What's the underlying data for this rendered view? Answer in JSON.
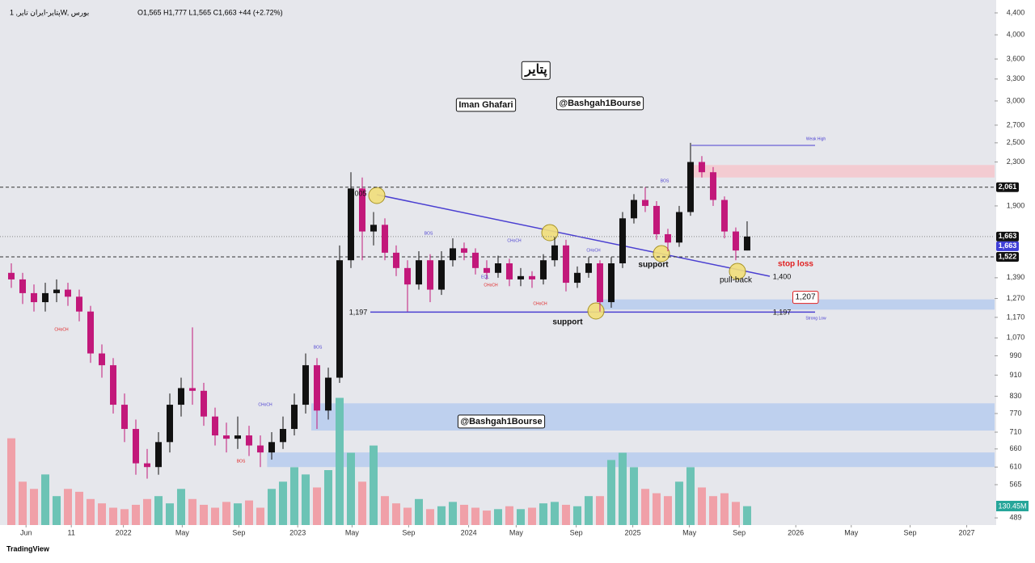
{
  "header": {
    "symbol": "پتایر-ایران تایر, 1W, بورس",
    "ohlc": "O1,565  H1,777  L1,565  C1,663  +44 (+2.72%)"
  },
  "footer": "TradingView",
  "chart_data": {
    "type": "candlestick",
    "log_scale": true,
    "up_color": "#111111",
    "down_color": "#c2187a",
    "x": [
      0,
      1,
      2,
      3,
      4,
      5,
      6,
      7,
      8,
      9,
      10,
      11,
      12,
      13,
      14,
      15,
      16,
      17,
      18,
      19,
      20,
      21,
      22,
      23,
      24,
      25,
      26,
      27,
      28,
      29,
      30,
      31,
      32,
      33,
      34,
      35,
      36,
      37,
      38,
      39,
      40,
      41,
      42,
      43,
      44,
      45,
      46,
      47,
      48,
      49,
      50,
      51,
      52,
      53,
      54,
      55,
      56,
      57,
      58,
      59,
      60,
      61,
      62,
      63,
      64,
      65
    ],
    "open": [
      1420,
      1380,
      1300,
      1250,
      1300,
      1320,
      1280,
      1200,
      1000,
      950,
      800,
      720,
      620,
      610,
      680,
      800,
      860,
      850,
      760,
      700,
      690,
      700,
      670,
      650,
      680,
      720,
      800,
      950,
      780,
      900,
      1500,
      2050,
      1700,
      1750,
      1550,
      1450,
      1350,
      1500,
      1320,
      1500,
      1580,
      1550,
      1450,
      1420,
      1480,
      1380,
      1400,
      1380,
      1500,
      1600,
      1360,
      1420,
      1480,
      1250,
      1480,
      1800,
      1950,
      1900,
      1680,
      1620,
      1850,
      2300,
      2200,
      1950,
      1700,
      1565
    ],
    "high": [
      1480,
      1420,
      1350,
      1360,
      1380,
      1360,
      1320,
      1230,
      1040,
      980,
      840,
      750,
      660,
      710,
      840,
      900,
      1120,
      880,
      790,
      740,
      760,
      730,
      700,
      710,
      760,
      840,
      1000,
      980,
      940,
      1600,
      2200,
      2150,
      1850,
      1800,
      1600,
      1500,
      1560,
      1540,
      1560,
      1650,
      1620,
      1580,
      1500,
      1530,
      1510,
      1450,
      1430,
      1540,
      1660,
      1640,
      1460,
      1520,
      1500,
      1520,
      1850,
      2000,
      2060,
      1940,
      1720,
      1900,
      2500,
      2360,
      2250,
      1980,
      1730,
      1777
    ],
    "low": [
      1330,
      1240,
      1200,
      1200,
      1250,
      1230,
      1150,
      960,
      900,
      770,
      680,
      590,
      580,
      590,
      650,
      760,
      800,
      730,
      670,
      650,
      660,
      640,
      610,
      630,
      660,
      700,
      770,
      720,
      750,
      880,
      1450,
      1500,
      1600,
      1500,
      1400,
      1200,
      1320,
      1250,
      1290,
      1460,
      1500,
      1410,
      1380,
      1390,
      1340,
      1340,
      1330,
      1350,
      1460,
      1310,
      1330,
      1390,
      1200,
      1220,
      1450,
      1760,
      1850,
      1640,
      1560,
      1590,
      1820,
      2150,
      1900,
      1650,
      1500,
      1565
    ],
    "close": [
      1380,
      1300,
      1250,
      1300,
      1320,
      1280,
      1200,
      1000,
      950,
      800,
      720,
      620,
      610,
      680,
      800,
      860,
      850,
      760,
      700,
      690,
      700,
      670,
      650,
      680,
      720,
      800,
      950,
      780,
      900,
      1500,
      2050,
      1700,
      1750,
      1550,
      1450,
      1350,
      1500,
      1320,
      1500,
      1580,
      1550,
      1450,
      1420,
      1480,
      1380,
      1400,
      1380,
      1500,
      1600,
      1360,
      1420,
      1480,
      1250,
      1480,
      1800,
      1950,
      1900,
      1680,
      1620,
      1850,
      2300,
      2200,
      1950,
      1700,
      1565,
      1663
    ],
    "volume": {
      "values": [
        600,
        300,
        250,
        350,
        200,
        250,
        230,
        180,
        150,
        120,
        110,
        140,
        180,
        200,
        150,
        250,
        180,
        140,
        120,
        160,
        150,
        170,
        120,
        250,
        300,
        400,
        350,
        260,
        380,
        880,
        500,
        300,
        550,
        200,
        150,
        120,
        180,
        110,
        130,
        160,
        140,
        120,
        100,
        110,
        130,
        110,
        120,
        150,
        160,
        140,
        130,
        200,
        200,
        450,
        500,
        400,
        250,
        220,
        200,
        300,
        400,
        260,
        200,
        220,
        160,
        130.45
      ],
      "ylim": [
        0,
        950
      ],
      "last_label": "130.45M",
      "up_color": "#6cc3b5",
      "down_color": "#f0a0a8"
    },
    "xlim": [
      -1,
      86.86
    ],
    "xticks": [
      {
        "value": 1.3,
        "label": "Jun"
      },
      {
        "value": 5.3,
        "label": "11"
      },
      {
        "value": 9.9,
        "label": "2022"
      },
      {
        "value": 15.1,
        "label": "May"
      },
      {
        "value": 20.1,
        "label": "Sep"
      },
      {
        "value": 25.3,
        "label": "2023"
      },
      {
        "value": 30.1,
        "label": "May"
      },
      {
        "value": 35.1,
        "label": "Sep"
      },
      {
        "value": 40.4,
        "label": "2024"
      },
      {
        "value": 44.6,
        "label": "May"
      },
      {
        "value": 49.9,
        "label": "Sep"
      },
      {
        "value": 54.9,
        "label": "2025"
      },
      {
        "value": 59.9,
        "label": "May"
      },
      {
        "value": 64.3,
        "label": "Sep"
      },
      {
        "value": 69.3,
        "label": "2026"
      },
      {
        "value": 74.2,
        "label": "May"
      },
      {
        "value": 79.4,
        "label": "Sep"
      },
      {
        "value": 84.4,
        "label": "2027"
      }
    ],
    "ylim": [
      474,
      4654
    ],
    "yticks": [
      {
        "value": 4400,
        "label": "4,400"
      },
      {
        "value": 4000,
        "label": "4,000"
      },
      {
        "value": 3600,
        "label": "3,600"
      },
      {
        "value": 3300,
        "label": "3,300"
      },
      {
        "value": 3000,
        "label": "3,000"
      },
      {
        "value": 2700,
        "label": "2,700"
      },
      {
        "value": 2500,
        "label": "2,500"
      },
      {
        "value": 2300,
        "label": "2,300"
      },
      {
        "value": 1900,
        "label": "1,900"
      },
      {
        "value": 1390,
        "label": "1,390"
      },
      {
        "value": 1270,
        "label": "1,270"
      },
      {
        "value": 1170,
        "label": "1,170"
      },
      {
        "value": 1070,
        "label": "1,070"
      },
      990,
      910,
      830,
      770,
      710,
      660,
      610,
      565,
      489
    ],
    "price_lines": [
      {
        "value": 2061,
        "label": "2,061",
        "color": "#111111",
        "dash": true
      },
      {
        "value": 1663,
        "label": "1,663",
        "color": "#111111",
        "dash": false
      },
      {
        "value": 1663,
        "label": "1,663",
        "color": "#3f3fd6",
        "dash": false
      },
      {
        "value": 1522,
        "label": "1,522",
        "color": "#111111",
        "dash": true
      }
    ],
    "levels": [
      {
        "value": 1197,
        "color": "#4a3fd1"
      }
    ],
    "zones": [
      {
        "low": 2150,
        "high": 2270,
        "x0": 60.1,
        "color": "#f4c6cc"
      },
      {
        "low": 1210,
        "high": 1265,
        "x0": 51.9,
        "color": "#b6cbee"
      },
      {
        "low": 715,
        "high": 805,
        "x0": 26.5,
        "color": "#b6cbee"
      },
      {
        "low": 610,
        "high": 650,
        "x0": 22.6,
        "color": "#b6cbee"
      }
    ],
    "annotations": [
      "پتایر",
      "Iman Ghafari",
      "@Bashgah1Bourse",
      "@Bashgah1Bourse",
      "support",
      "support",
      "stop loss",
      "pull-back",
      "1,400",
      "1,197",
      "1,197",
      "1,207",
      "005",
      "Weak High",
      "Strong Low",
      "BOS",
      "BOS",
      "BOS",
      "CHoCH",
      "CHoCH",
      "CHoCH",
      "CHoCH",
      "CHoCH",
      "CHoCH",
      "BOS",
      "EQL"
    ]
  }
}
